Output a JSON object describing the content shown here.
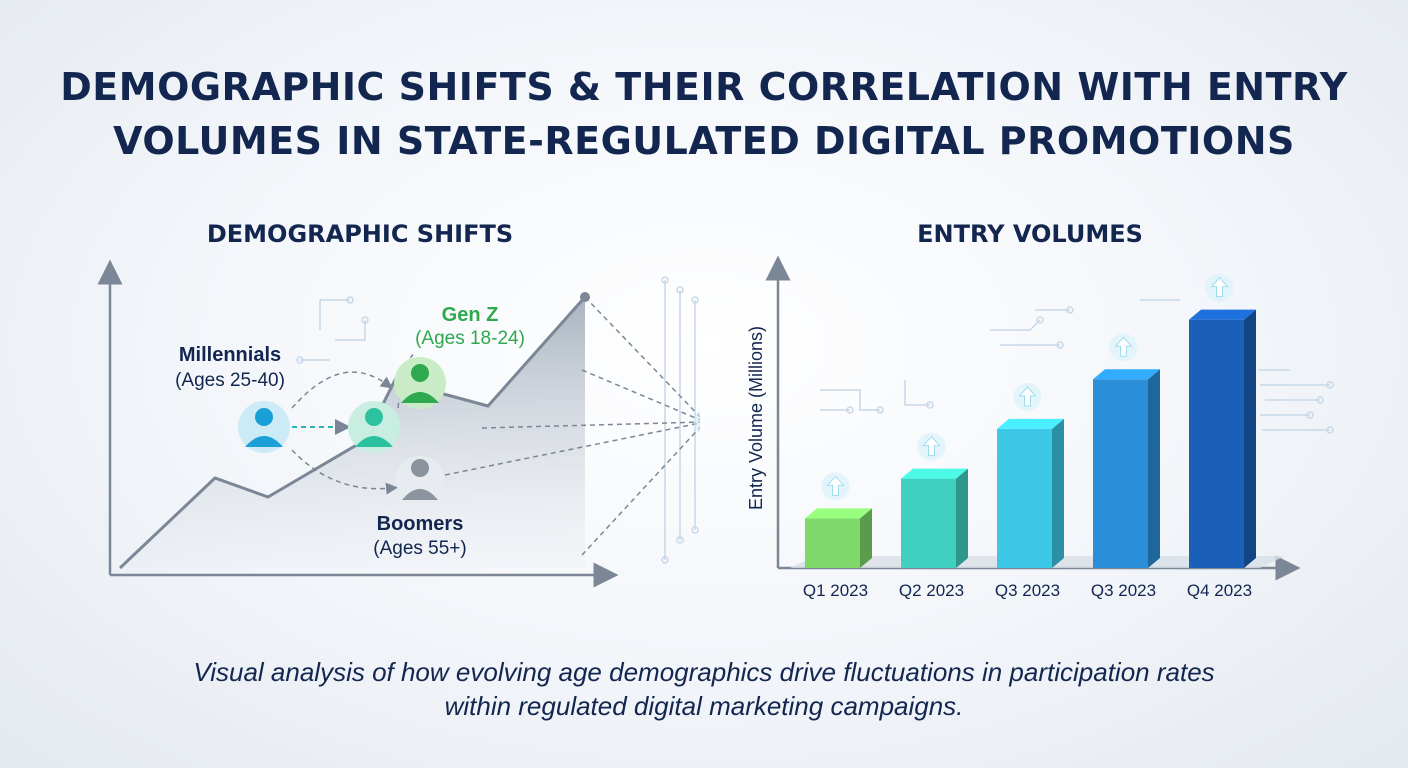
{
  "title": {
    "line1": "DEMOGRAPHIC SHIFTS & THEIR CORRELATION WITH ENTRY",
    "line2": "VOLUMES IN STATE-REGULATED DIGITAL PROMOTIONS"
  },
  "left_panel": {
    "title": "DEMOGRAPHIC SHIFTS",
    "groups": [
      {
        "name": "Millennials",
        "ages": "(Ages 25-40)",
        "color": "#1a9fd6"
      },
      {
        "name": "Gen Z",
        "ages": "(Ages 18-24)",
        "color": "#2fa84f"
      },
      {
        "name": "Boomers",
        "ages": "(Ages 55+)",
        "color": "#8a939e"
      }
    ],
    "icons": [
      "person-icon-millennials",
      "person-icon-transition",
      "person-icon-genz",
      "person-icon-boomers"
    ]
  },
  "right_panel": {
    "title": "ENTRY VOLUMES"
  },
  "chart_data": {
    "type": "bar",
    "title": "ENTRY VOLUMES",
    "xlabel": "",
    "ylabel": "Entry Volume (Millions)",
    "categories": [
      "Q1 2023",
      "Q2 2023",
      "Q3 2023",
      "Q3 2023",
      "Q4 2023"
    ],
    "values": [
      1.0,
      1.8,
      2.8,
      3.8,
      5.0
    ],
    "ylim": [
      0,
      6
    ],
    "grid": false,
    "colors": [
      "#7fd86a",
      "#40d0c0",
      "#3cc8e6",
      "#2a8fd8",
      "#1a5fb8"
    ]
  },
  "caption": {
    "line1": "Visual analysis of how evolving age demographics drive fluctuations in participation rates",
    "line2": "within regulated digital marketing campaigns."
  }
}
